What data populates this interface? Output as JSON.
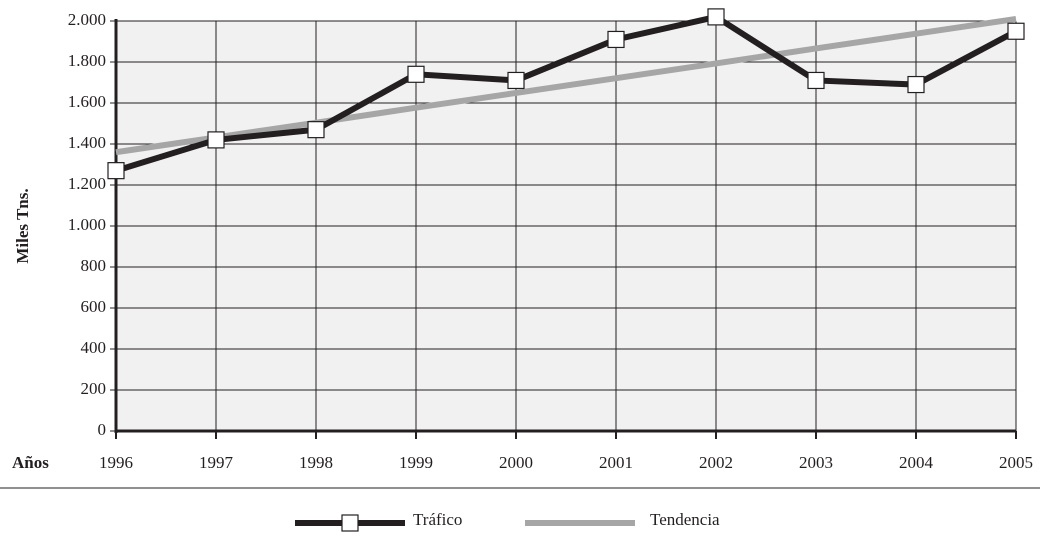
{
  "chart_data": {
    "type": "line",
    "xlabel": "Años",
    "ylabel": "Miles Tns.",
    "categories": [
      "1996",
      "1997",
      "1998",
      "1999",
      "2000",
      "2001",
      "2002",
      "2003",
      "2004",
      "2005"
    ],
    "series": [
      {
        "name": "Tráfico",
        "color": "#231f20",
        "marker": "square",
        "values": [
          1270,
          1420,
          1470,
          1740,
          1710,
          1910,
          2020,
          1710,
          1690,
          1950
        ]
      },
      {
        "name": "Tendencia",
        "color": "#a6a6a6",
        "values": [
          1360,
          1432,
          1504,
          1577,
          1649,
          1721,
          1793,
          1866,
          1938,
          2010
        ]
      }
    ],
    "ylim": [
      0,
      2000
    ],
    "yticks": [
      0,
      200,
      400,
      600,
      800,
      {
        "value": 1000,
        "label": "1.000"
      },
      {
        "value": 1200,
        "label": "1.200"
      },
      {
        "value": 1400,
        "label": "1.400"
      },
      {
        "value": 1600,
        "label": "1.600"
      },
      {
        "value": 1800,
        "label": "1.800"
      },
      {
        "value": 2000,
        "label": "2.000"
      }
    ],
    "grid": true
  }
}
